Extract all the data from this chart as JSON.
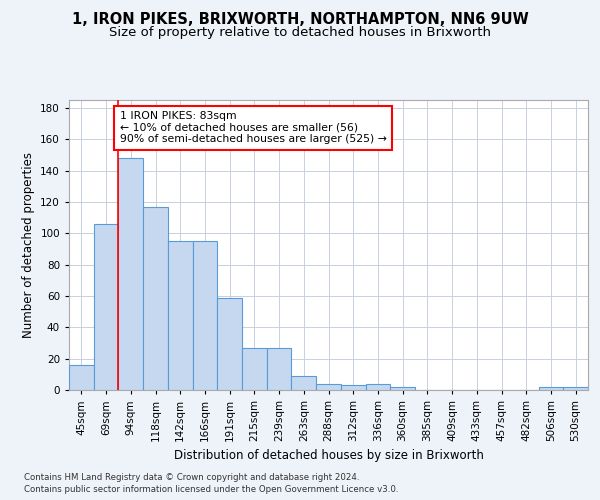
{
  "title1": "1, IRON PIKES, BRIXWORTH, NORTHAMPTON, NN6 9UW",
  "title2": "Size of property relative to detached houses in Brixworth",
  "xlabel": "Distribution of detached houses by size in Brixworth",
  "ylabel": "Number of detached properties",
  "footer1": "Contains HM Land Registry data © Crown copyright and database right 2024.",
  "footer2": "Contains public sector information licensed under the Open Government Licence v3.0.",
  "categories": [
    "45sqm",
    "69sqm",
    "94sqm",
    "118sqm",
    "142sqm",
    "166sqm",
    "191sqm",
    "215sqm",
    "239sqm",
    "263sqm",
    "288sqm",
    "312sqm",
    "336sqm",
    "360sqm",
    "385sqm",
    "409sqm",
    "433sqm",
    "457sqm",
    "482sqm",
    "506sqm",
    "530sqm"
  ],
  "bar_values": [
    16,
    106,
    148,
    117,
    95,
    95,
    59,
    27,
    27,
    9,
    4,
    3,
    4,
    2,
    0,
    0,
    0,
    0,
    0,
    2,
    2
  ],
  "bar_color": "#c5d8f0",
  "bar_edge_color": "#5b9bd5",
  "annotation_line1": "1 IRON PIKES: 83sqm",
  "annotation_line2": "← 10% of detached houses are smaller (56)",
  "annotation_line3": "90% of semi-detached houses are larger (525) →",
  "redline_x": 1.5,
  "ylim": [
    0,
    185
  ],
  "yticks": [
    0,
    20,
    40,
    60,
    80,
    100,
    120,
    140,
    160,
    180
  ],
  "background_color": "#eef2f9",
  "plot_bg_color": "#ffffff",
  "grid_color": "#c8d0e0",
  "title_fontsize": 10.5,
  "subtitle_fontsize": 9.5,
  "axis_label_fontsize": 8.5,
  "tick_fontsize": 7.5,
  "bar_width": 1.0
}
